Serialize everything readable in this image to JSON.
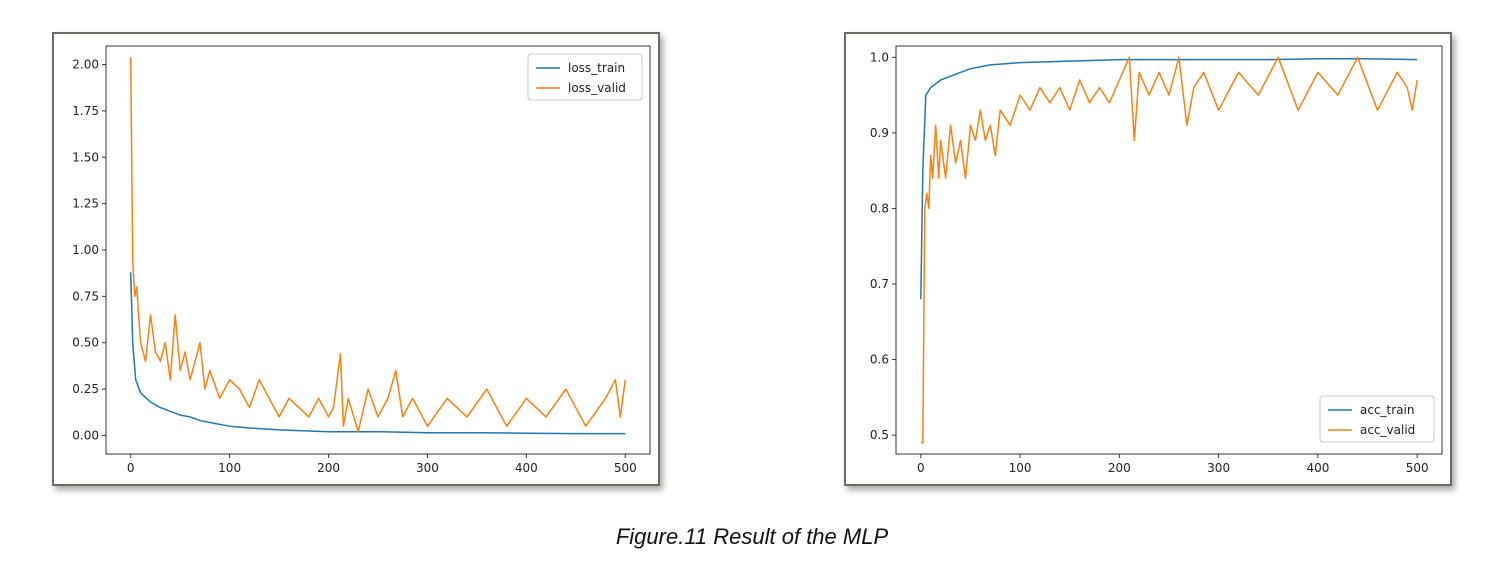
{
  "caption": "Figure.11 Result of the MLP",
  "colors": {
    "train": "#1f77b4",
    "valid": "#ff7f0e",
    "axis": "#333333",
    "frame": "#6f6a63"
  },
  "chart_data": [
    {
      "type": "line",
      "title": "",
      "xlabel": "",
      "ylabel": "",
      "xlim": [
        -25,
        525
      ],
      "ylim": [
        -0.1,
        2.1
      ],
      "xticks": [
        0,
        100,
        200,
        300,
        400,
        500
      ],
      "yticks": [
        0.0,
        0.25,
        0.5,
        0.75,
        1.0,
        1.25,
        1.5,
        1.75,
        2.0
      ],
      "ytick_labels": [
        "0.00",
        "0.25",
        "0.50",
        "0.75",
        "1.00",
        "1.25",
        "1.50",
        "1.75",
        "2.00"
      ],
      "xtick_labels": [
        "0",
        "100",
        "200",
        "300",
        "400",
        "500"
      ],
      "grid": false,
      "legend": "top-right",
      "series": [
        {
          "name": "loss_train",
          "color": "#1f77b4",
          "x": [
            0,
            2,
            5,
            10,
            20,
            30,
            40,
            50,
            60,
            70,
            80,
            100,
            120,
            150,
            200,
            250,
            300,
            350,
            400,
            450,
            500
          ],
          "y": [
            0.88,
            0.5,
            0.3,
            0.23,
            0.18,
            0.15,
            0.13,
            0.11,
            0.1,
            0.08,
            0.07,
            0.05,
            0.04,
            0.03,
            0.02,
            0.02,
            0.015,
            0.015,
            0.012,
            0.01,
            0.01
          ]
        },
        {
          "name": "loss_valid",
          "color": "#ff7f0e",
          "x": [
            0,
            2,
            4,
            6,
            8,
            10,
            15,
            20,
            25,
            30,
            35,
            40,
            45,
            50,
            55,
            60,
            70,
            75,
            80,
            90,
            100,
            110,
            120,
            130,
            140,
            150,
            160,
            170,
            180,
            190,
            200,
            205,
            212,
            215,
            220,
            230,
            240,
            250,
            260,
            268,
            275,
            285,
            300,
            320,
            340,
            360,
            380,
            400,
            420,
            440,
            460,
            480,
            490,
            495,
            500
          ],
          "y": [
            2.04,
            0.95,
            0.75,
            0.8,
            0.65,
            0.5,
            0.4,
            0.65,
            0.45,
            0.4,
            0.5,
            0.3,
            0.65,
            0.35,
            0.45,
            0.3,
            0.5,
            0.25,
            0.35,
            0.2,
            0.3,
            0.25,
            0.15,
            0.3,
            0.2,
            0.1,
            0.2,
            0.15,
            0.1,
            0.2,
            0.1,
            0.15,
            0.44,
            0.05,
            0.2,
            0.02,
            0.25,
            0.1,
            0.2,
            0.35,
            0.1,
            0.2,
            0.05,
            0.2,
            0.1,
            0.25,
            0.05,
            0.2,
            0.1,
            0.25,
            0.05,
            0.2,
            0.3,
            0.1,
            0.3
          ]
        }
      ]
    },
    {
      "type": "line",
      "title": "",
      "xlabel": "",
      "ylabel": "",
      "xlim": [
        -25,
        525
      ],
      "ylim": [
        0.475,
        1.015
      ],
      "xticks": [
        0,
        100,
        200,
        300,
        400,
        500
      ],
      "yticks": [
        0.5,
        0.6,
        0.7,
        0.8,
        0.9,
        1.0
      ],
      "ytick_labels": [
        "0.5",
        "0.6",
        "0.7",
        "0.8",
        "0.9",
        "1.0"
      ],
      "xtick_labels": [
        "0",
        "100",
        "200",
        "300",
        "400",
        "500"
      ],
      "grid": false,
      "legend": "bottom-right",
      "series": [
        {
          "name": "acc_train",
          "color": "#1f77b4",
          "x": [
            0,
            2,
            5,
            10,
            20,
            30,
            40,
            50,
            70,
            100,
            150,
            200,
            250,
            300,
            350,
            400,
            450,
            500
          ],
          "y": [
            0.68,
            0.85,
            0.95,
            0.96,
            0.97,
            0.975,
            0.98,
            0.985,
            0.99,
            0.993,
            0.995,
            0.997,
            0.997,
            0.997,
            0.997,
            0.998,
            0.998,
            0.997
          ]
        },
        {
          "name": "acc_valid",
          "color": "#ff7f0e",
          "x": [
            0,
            2,
            4,
            6,
            8,
            10,
            12,
            15,
            18,
            20,
            25,
            30,
            35,
            40,
            45,
            50,
            55,
            60,
            65,
            70,
            75,
            80,
            90,
            100,
            110,
            120,
            130,
            140,
            150,
            160,
            170,
            180,
            190,
            200,
            210,
            215,
            220,
            230,
            240,
            250,
            260,
            268,
            275,
            285,
            300,
            320,
            340,
            360,
            380,
            400,
            420,
            440,
            460,
            480,
            490,
            495,
            500
          ],
          "y": [
            0.49,
            0.49,
            0.8,
            0.82,
            0.8,
            0.87,
            0.84,
            0.91,
            0.84,
            0.89,
            0.84,
            0.91,
            0.86,
            0.89,
            0.84,
            0.91,
            0.89,
            0.93,
            0.89,
            0.91,
            0.87,
            0.93,
            0.91,
            0.95,
            0.93,
            0.96,
            0.94,
            0.96,
            0.93,
            0.97,
            0.94,
            0.96,
            0.94,
            0.97,
            1.0,
            0.89,
            0.98,
            0.95,
            0.98,
            0.95,
            1.0,
            0.91,
            0.96,
            0.98,
            0.93,
            0.98,
            0.95,
            1.0,
            0.93,
            0.98,
            0.95,
            1.0,
            0.93,
            0.98,
            0.96,
            0.93,
            0.97
          ]
        }
      ]
    }
  ]
}
